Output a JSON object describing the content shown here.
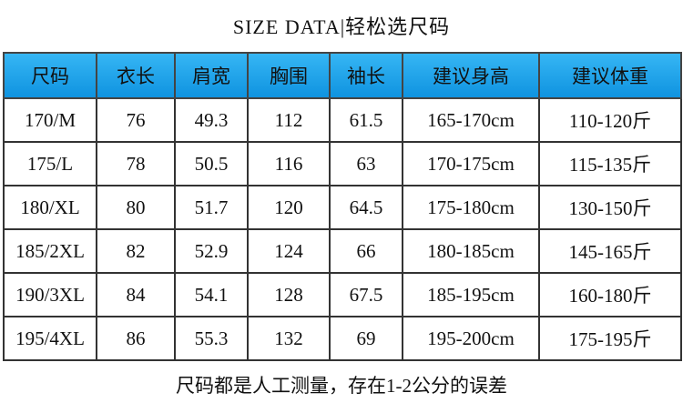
{
  "header": {
    "title": "SIZE DATA|轻松选尺码"
  },
  "table": {
    "columns": [
      "尺码",
      "衣长",
      "肩宽",
      "胸围",
      "袖长",
      "建议身高",
      "建议体重"
    ],
    "rows": [
      [
        "170/M",
        "76",
        "49.3",
        "112",
        "61.5",
        "165-170cm",
        "110-120斤"
      ],
      [
        "175/L",
        "78",
        "50.5",
        "116",
        "63",
        "170-175cm",
        "115-135斤"
      ],
      [
        "180/XL",
        "80",
        "51.7",
        "120",
        "64.5",
        "175-180cm",
        "130-150斤"
      ],
      [
        "185/2XL",
        "82",
        "52.9",
        "124",
        "66",
        "180-185cm",
        "145-165斤"
      ],
      [
        "190/3XL",
        "84",
        "54.1",
        "128",
        "67.5",
        "185-195cm",
        "160-180斤"
      ],
      [
        "195/4XL",
        "86",
        "55.3",
        "132",
        "69",
        "195-200cm",
        "175-195斤"
      ]
    ]
  },
  "footer": {
    "note": "尺码都是人工测量，存在1-2公分的误差"
  }
}
